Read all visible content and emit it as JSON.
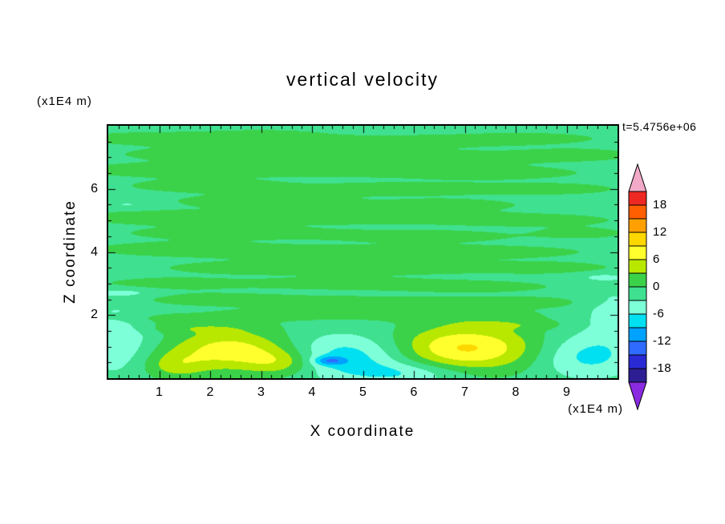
{
  "title": "vertical velocity",
  "time_label": "t=5.4756e+06",
  "axes": {
    "x": {
      "label": "X coordinate",
      "unit": "(x1E4 m)",
      "range": [
        0,
        10
      ],
      "major_ticks": [
        1,
        2,
        3,
        4,
        5,
        6,
        7,
        8,
        9
      ],
      "minor_step": 0.2
    },
    "z": {
      "label": "Z coordinate",
      "unit": "(x1E4 m)",
      "range": [
        0,
        8
      ],
      "major_ticks": [
        2,
        4,
        6
      ],
      "minor_step": 0.5
    }
  },
  "colorbar": {
    "value_min": -21,
    "value_max": 21,
    "step": 3,
    "tick_labels": [
      "18",
      "12",
      "6",
      "0",
      "-6",
      "-12",
      "-18"
    ],
    "colors_low_to_high": [
      "#2d1e94",
      "#2a2ad4",
      "#2f6bff",
      "#00a2ff",
      "#00e0f0",
      "#7dffd8",
      "#3fe08f",
      "#3bd24a",
      "#b8e800",
      "#ffff2e",
      "#ffd700",
      "#ffa000",
      "#ff5f00",
      "#ee2822"
    ],
    "under_arrow_color": "#8a2be2",
    "over_arrow_color": "#f2aac8"
  },
  "chart_data": {
    "type": "heatmap",
    "title": "vertical velocity",
    "xlabel": "X coordinate",
    "ylabel": "Z coordinate",
    "x_range": [
      0,
      10
    ],
    "z_range": [
      0,
      8
    ],
    "contour_interval": 3,
    "shown_level_range": [
      -21,
      21
    ],
    "background_value": -1,
    "gaussian_format": [
      "x",
      "z",
      "sigma_x",
      "sigma_z",
      "amplitude"
    ],
    "bottom_features": [
      [
        2.4,
        0.9,
        0.85,
        0.45,
        8.5
      ],
      [
        3.4,
        0.5,
        0.5,
        0.3,
        5.5
      ],
      [
        1.3,
        0.4,
        0.45,
        0.3,
        4.5
      ],
      [
        7.0,
        0.95,
        1.0,
        0.5,
        10.5
      ],
      [
        4.7,
        0.7,
        0.9,
        0.5,
        -7.0
      ],
      [
        4.35,
        0.55,
        0.22,
        0.1,
        -7.0
      ],
      [
        0.2,
        1.2,
        0.5,
        0.8,
        -4.5
      ],
      [
        9.4,
        0.7,
        0.7,
        0.5,
        -6.0
      ],
      [
        9.9,
        2.0,
        0.4,
        0.6,
        -3.5
      ],
      [
        5.9,
        0.15,
        0.8,
        0.25,
        -4.5
      ]
    ],
    "streaks": [
      [
        1.0,
        7.6,
        1.2,
        0.15,
        2.4
      ],
      [
        3.1,
        7.7,
        0.8,
        0.12,
        2.2
      ],
      [
        5.6,
        7.5,
        1.5,
        0.15,
        2.3
      ],
      [
        8.2,
        7.6,
        1.0,
        0.13,
        2.2
      ],
      [
        2.2,
        7.1,
        1.4,
        0.16,
        2.4
      ],
      [
        6.8,
        7.0,
        1.8,
        0.15,
        2.3
      ],
      [
        9.2,
        7.1,
        0.7,
        0.12,
        2.2
      ],
      [
        0.8,
        6.6,
        0.9,
        0.14,
        2.3
      ],
      [
        4.2,
        6.6,
        2.0,
        0.16,
        2.4
      ],
      [
        7.6,
        6.5,
        1.2,
        0.14,
        2.2
      ],
      [
        1.9,
        6.1,
        1.1,
        0.15,
        2.3
      ],
      [
        5.9,
        6.0,
        1.6,
        0.15,
        2.4
      ],
      [
        8.8,
        6.0,
        0.8,
        0.12,
        2.2
      ],
      [
        3.0,
        5.6,
        1.3,
        0.15,
        2.3
      ],
      [
        6.7,
        5.5,
        1.0,
        0.13,
        2.2
      ],
      [
        0.9,
        5.1,
        1.0,
        0.15,
        2.4
      ],
      [
        4.8,
        5.1,
        2.2,
        0.16,
        2.4
      ],
      [
        8.3,
        5.0,
        1.1,
        0.13,
        2.2
      ],
      [
        2.4,
        4.6,
        1.5,
        0.15,
        2.3
      ],
      [
        6.2,
        4.5,
        1.3,
        0.14,
        2.3
      ],
      [
        9.3,
        4.6,
        0.6,
        0.12,
        2.2
      ],
      [
        1.4,
        4.1,
        1.2,
        0.15,
        2.3
      ],
      [
        4.1,
        4.0,
        1.8,
        0.15,
        2.4
      ],
      [
        7.4,
        4.0,
        1.4,
        0.14,
        2.3
      ],
      [
        2.8,
        3.5,
        1.2,
        0.14,
        2.3
      ],
      [
        5.7,
        3.5,
        1.6,
        0.15,
        2.4
      ],
      [
        8.7,
        3.5,
        0.9,
        0.13,
        2.2
      ],
      [
        1.1,
        3.0,
        1.0,
        0.14,
        2.3
      ],
      [
        4.6,
        3.0,
        1.4,
        0.14,
        2.3
      ],
      [
        7.2,
        2.9,
        1.1,
        0.13,
        2.2
      ],
      [
        2.0,
        2.5,
        1.3,
        0.14,
        2.3
      ],
      [
        5.2,
        2.4,
        1.5,
        0.14,
        2.3
      ],
      [
        8.1,
        2.4,
        1.0,
        0.13,
        2.2
      ],
      [
        3.6,
        2.0,
        1.2,
        0.13,
        2.3
      ],
      [
        6.5,
        2.0,
        1.3,
        0.13,
        2.3
      ],
      [
        1.6,
        1.6,
        0.9,
        0.13,
        2.3
      ],
      [
        7.9,
        1.7,
        0.8,
        0.12,
        2.2
      ],
      [
        0.8,
        1.9,
        0.6,
        0.12,
        2.2
      ],
      [
        0.3,
        2.7,
        0.5,
        0.1,
        -2.6
      ],
      [
        0.4,
        5.5,
        0.4,
        0.1,
        -2.4
      ],
      [
        9.7,
        3.2,
        0.4,
        0.1,
        -2.4
      ]
    ]
  }
}
